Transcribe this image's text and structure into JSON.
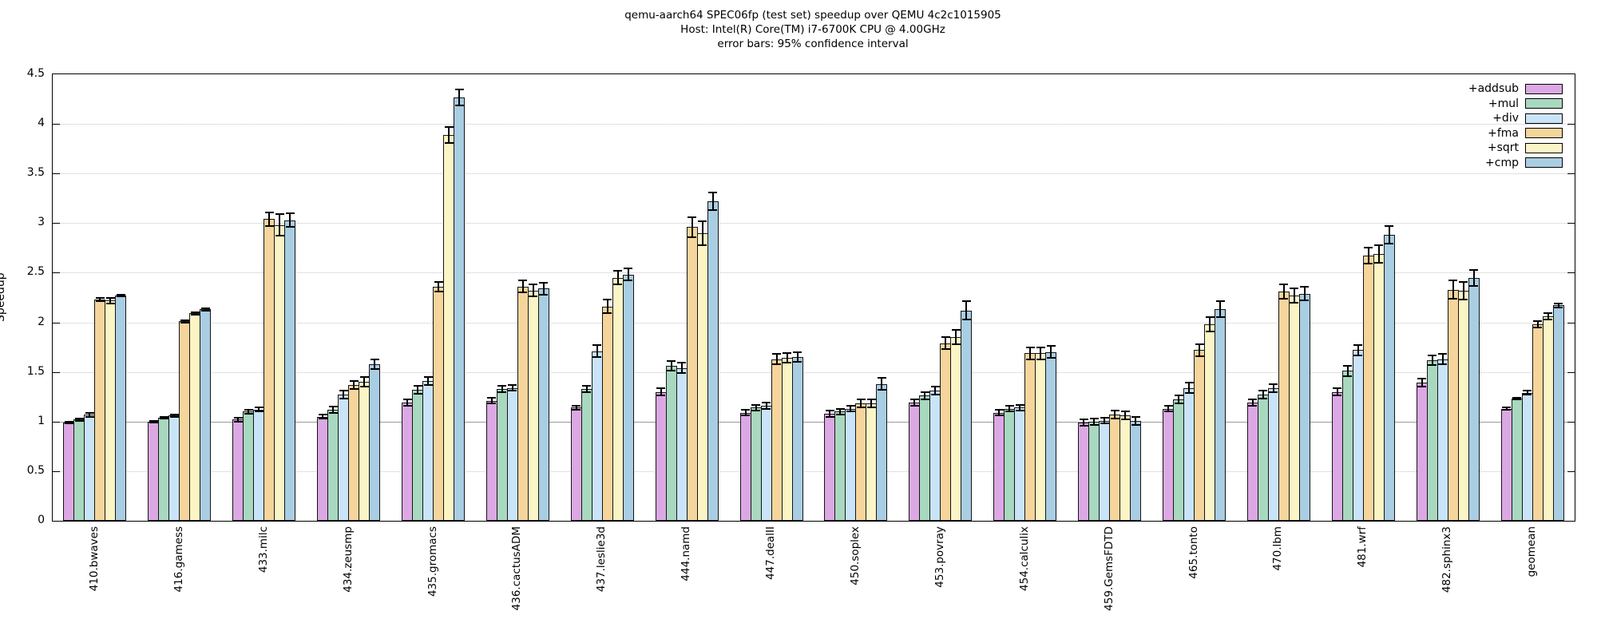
{
  "title": {
    "line1": "qemu-aarch64 SPEC06fp (test set) speedup over QEMU 4c2c1015905",
    "line2": "Host: Intel(R) Core(TM) i7-6700K CPU @ 4.00GHz",
    "line3": "error bars: 95% confidence interval"
  },
  "y_axis": {
    "label": "Speedup",
    "tick_labels": [
      "0",
      "0.5",
      "1",
      "1.5",
      "2",
      "2.5",
      "3",
      "3.5",
      "4",
      "4.5"
    ],
    "tick_values": [
      0,
      0.5,
      1,
      1.5,
      2,
      2.5,
      3,
      3.5,
      4,
      4.5
    ],
    "max": 4.5,
    "baseline_value": 1
  },
  "chart_data": {
    "type": "bar",
    "title": "qemu-aarch64 SPEC06fp (test set) speedup over QEMU 4c2c1015905",
    "subtitle": "Host: Intel(R) Core(TM) i7-6700K CPU @ 4.00GHz",
    "note": "error bars: 95% confidence interval",
    "xlabel": "",
    "ylabel": "Speedup",
    "ylim": [
      0,
      4.5
    ],
    "grid": "horizontal dotted every 0.5, solid gray line at y=1",
    "legend_position": "top-right inside plot",
    "categories": [
      "410.bwaves",
      "416.gamess",
      "433.milc",
      "434.zeusmp",
      "435.gromacs",
      "436.cactusADM",
      "437.leslie3d",
      "444.namd",
      "447.dealII",
      "450.soplex",
      "453.povray",
      "454.calculix",
      "459.GemsFDTD",
      "465.tonto",
      "470.lbm",
      "481.wrf",
      "482.sphinx3",
      "geomean"
    ],
    "series": [
      {
        "name": "+addsub",
        "color": "#dca8e4",
        "values": [
          0.99,
          1.0,
          1.02,
          1.05,
          1.19,
          1.21,
          1.14,
          1.3,
          1.09,
          1.08,
          1.19,
          1.09,
          0.99,
          1.13,
          1.19,
          1.3,
          1.39,
          1.13
        ],
        "errors": [
          0.01,
          0.01,
          0.02,
          0.02,
          0.03,
          0.03,
          0.02,
          0.04,
          0.03,
          0.03,
          0.03,
          0.03,
          0.03,
          0.03,
          0.03,
          0.04,
          0.04,
          0.01
        ]
      },
      {
        "name": "+mul",
        "color": "#a8d8bf",
        "values": [
          1.02,
          1.04,
          1.1,
          1.12,
          1.32,
          1.33,
          1.33,
          1.56,
          1.14,
          1.1,
          1.26,
          1.13,
          1.0,
          1.22,
          1.27,
          1.51,
          1.62,
          1.23
        ],
        "errors": [
          0.01,
          0.01,
          0.02,
          0.03,
          0.04,
          0.03,
          0.03,
          0.05,
          0.03,
          0.03,
          0.04,
          0.03,
          0.03,
          0.04,
          0.04,
          0.05,
          0.05,
          0.01
        ]
      },
      {
        "name": "+div",
        "color": "#c9e4f8",
        "values": [
          1.07,
          1.06,
          1.12,
          1.27,
          1.41,
          1.34,
          1.71,
          1.54,
          1.16,
          1.13,
          1.31,
          1.14,
          1.01,
          1.34,
          1.34,
          1.72,
          1.63,
          1.29
        ],
        "errors": [
          0.02,
          0.01,
          0.02,
          0.04,
          0.04,
          0.03,
          0.06,
          0.05,
          0.03,
          0.03,
          0.04,
          0.03,
          0.03,
          0.05,
          0.04,
          0.05,
          0.05,
          0.02
        ]
      },
      {
        "name": "+fma",
        "color": "#f5d59c",
        "values": [
          2.23,
          2.01,
          3.04,
          1.37,
          2.36,
          2.36,
          2.16,
          2.96,
          1.63,
          1.18,
          1.79,
          1.69,
          1.07,
          1.72,
          2.31,
          2.67,
          2.33,
          1.98
        ],
        "errors": [
          0.02,
          0.01,
          0.07,
          0.04,
          0.05,
          0.06,
          0.07,
          0.1,
          0.05,
          0.04,
          0.06,
          0.06,
          0.04,
          0.06,
          0.07,
          0.08,
          0.09,
          0.03
        ]
      },
      {
        "name": "+sqrt",
        "color": "#fbf5c6",
        "values": [
          2.22,
          2.09,
          2.98,
          1.4,
          3.89,
          2.32,
          2.45,
          2.9,
          1.64,
          1.18,
          1.85,
          1.69,
          1.06,
          1.98,
          2.27,
          2.69,
          2.32,
          2.06
        ],
        "errors": [
          0.03,
          0.01,
          0.11,
          0.05,
          0.08,
          0.06,
          0.07,
          0.12,
          0.05,
          0.04,
          0.07,
          0.06,
          0.04,
          0.07,
          0.07,
          0.09,
          0.09,
          0.03
        ]
      },
      {
        "name": "+cmp",
        "color": "#a9cde2",
        "values": [
          2.27,
          2.13,
          3.03,
          1.58,
          4.27,
          2.34,
          2.48,
          3.22,
          1.65,
          1.38,
          2.12,
          1.7,
          1.01,
          2.13,
          2.29,
          2.88,
          2.45,
          2.17
        ],
        "errors": [
          0.01,
          0.01,
          0.07,
          0.05,
          0.08,
          0.06,
          0.06,
          0.09,
          0.05,
          0.06,
          0.09,
          0.06,
          0.04,
          0.08,
          0.07,
          0.09,
          0.08,
          0.02
        ]
      }
    ]
  },
  "colors": {
    "bar_border": "#141414",
    "grid_dotted": "#c3c3c3",
    "baseline": "#9a9a9a",
    "text": "#000000"
  }
}
